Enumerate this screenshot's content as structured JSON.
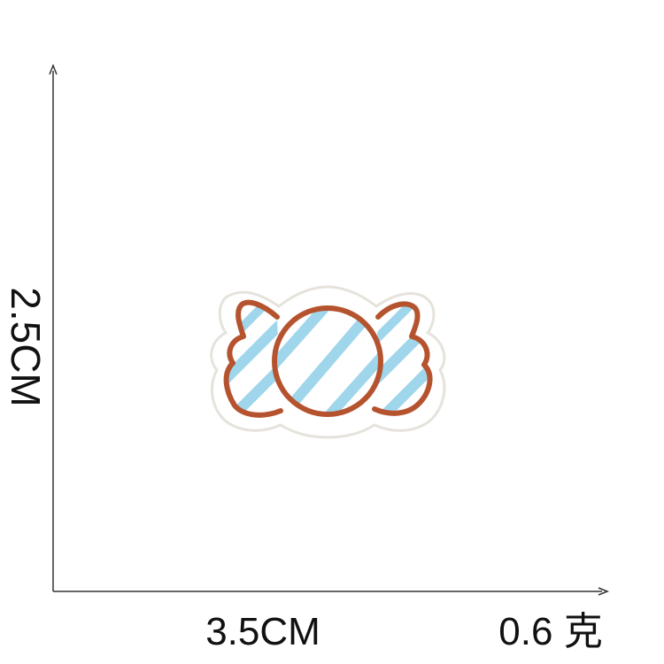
{
  "dimensions": {
    "height": "2.5CM",
    "width": "3.5CM",
    "weight": "0.6 克"
  },
  "colors": {
    "outline": "#b5532f",
    "stripe": "#9fd6ec",
    "fabric": "#ffffff",
    "edge": "#e9e6e1",
    "axis": "#333333"
  },
  "patch": {
    "subject": "candy-icon"
  }
}
